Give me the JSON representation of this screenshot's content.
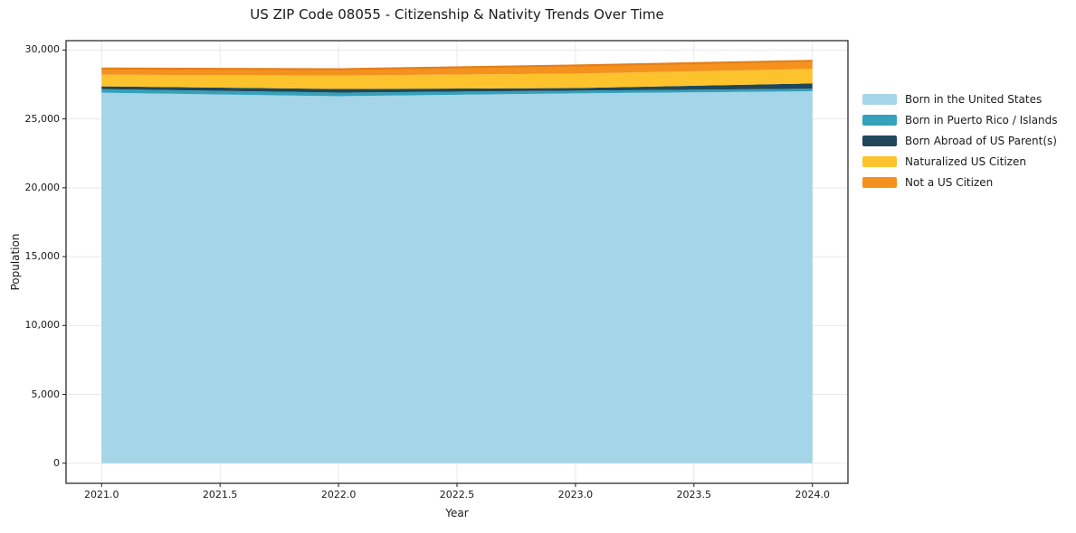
{
  "chart_data": {
    "type": "area",
    "stacked": true,
    "title": "US ZIP Code 08055 - Citizenship & Nativity Trends Over Time",
    "xlabel": "Year",
    "ylabel": "Population",
    "x": [
      2021,
      2022,
      2023,
      2024
    ],
    "series": [
      {
        "name": "Born in the United States",
        "color": "#a5d5e8",
        "values": [
          26900,
          26650,
          26850,
          27000
        ]
      },
      {
        "name": "Born in Puerto Rico / Islands",
        "color": "#35a1bb",
        "values": [
          260,
          260,
          200,
          190
        ]
      },
      {
        "name": "Born Abroad of US Parent(s)",
        "color": "#1f4759",
        "values": [
          200,
          260,
          190,
          390
        ]
      },
      {
        "name": "Naturalized US Citizen",
        "color": "#fcc32d",
        "values": [
          850,
          980,
          1050,
          1050
        ]
      },
      {
        "name": "Not a US Citizen",
        "color": "#f5921e",
        "values": [
          450,
          460,
          590,
          590
        ]
      }
    ],
    "totals": [
      28660,
      28610,
      28880,
      29220
    ],
    "xlim": [
      2020.85,
      2024.15
    ],
    "ylim": [
      -1461,
      30681
    ],
    "x_ticks": [
      2021.0,
      2021.5,
      2022.0,
      2022.5,
      2023.0,
      2023.5,
      2024.0
    ],
    "x_tick_labels": [
      "2021.0",
      "2021.5",
      "2022.0",
      "2022.5",
      "2023.0",
      "2023.5",
      "2024.0"
    ],
    "y_ticks": [
      0,
      5000,
      10000,
      15000,
      20000,
      25000,
      30000
    ],
    "y_tick_labels": [
      "0",
      "5,000",
      "10,000",
      "15,000",
      "20,000",
      "25,000",
      "30,000"
    ],
    "grid": true,
    "legend_position": "right of axes, frameless"
  },
  "colors": {
    "background": "#ffffff",
    "grid": "#e8e8e8",
    "spine": "#1a1a1a",
    "text": "#1a1a1a",
    "top_edge": "#e47f1a"
  }
}
